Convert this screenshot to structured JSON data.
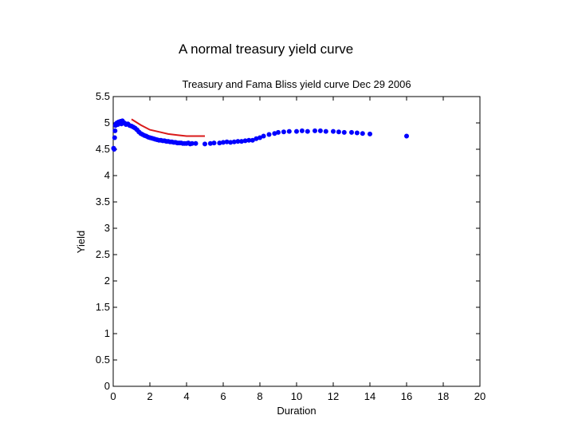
{
  "slide": {
    "title": "A normal treasury yield curve"
  },
  "chart_data": {
    "type": "scatter",
    "title": "Treasury and Fama Bliss  yield curve Dec 29 2006",
    "xlabel": "Duration",
    "ylabel": "Yield",
    "xlim": [
      0,
      20
    ],
    "ylim": [
      0,
      5.5
    ],
    "x_ticks": [
      0,
      2,
      4,
      6,
      8,
      10,
      12,
      14,
      16,
      18,
      20
    ],
    "y_ticks": [
      0,
      0.5,
      1,
      1.5,
      2,
      2.5,
      3,
      3.5,
      4,
      4.5,
      5,
      5.5
    ],
    "grid": false,
    "colors": {
      "scatter": "#0000ff",
      "line": "#d91a1a"
    },
    "series": [
      {
        "kind": "scatter",
        "points": [
          [
            0.02,
            4.52
          ],
          [
            0.05,
            4.5
          ],
          [
            0.08,
            4.72
          ],
          [
            0.1,
            4.85
          ],
          [
            0.12,
            4.95
          ],
          [
            0.15,
            4.98
          ],
          [
            0.2,
            5.0
          ],
          [
            0.25,
            4.97
          ],
          [
            0.3,
            5.02
          ],
          [
            0.35,
            5.0
          ],
          [
            0.4,
            5.03
          ],
          [
            0.45,
            4.98
          ],
          [
            0.5,
            5.04
          ],
          [
            0.55,
            5.01
          ],
          [
            0.6,
            5.0
          ],
          [
            0.65,
            4.99
          ],
          [
            0.7,
            4.97
          ],
          [
            0.8,
            4.98
          ],
          [
            0.9,
            4.95
          ],
          [
            1.0,
            4.94
          ],
          [
            1.1,
            4.92
          ],
          [
            1.2,
            4.9
          ],
          [
            1.3,
            4.87
          ],
          [
            1.4,
            4.83
          ],
          [
            1.5,
            4.8
          ],
          [
            1.6,
            4.78
          ],
          [
            1.7,
            4.76
          ],
          [
            1.8,
            4.75
          ],
          [
            1.9,
            4.73
          ],
          [
            2.0,
            4.72
          ],
          [
            2.1,
            4.71
          ],
          [
            2.2,
            4.7
          ],
          [
            2.3,
            4.69
          ],
          [
            2.4,
            4.68
          ],
          [
            2.5,
            4.67
          ],
          [
            2.6,
            4.67
          ],
          [
            2.7,
            4.66
          ],
          [
            2.8,
            4.66
          ],
          [
            2.9,
            4.65
          ],
          [
            3.0,
            4.65
          ],
          [
            3.1,
            4.64
          ],
          [
            3.2,
            4.64
          ],
          [
            3.3,
            4.63
          ],
          [
            3.4,
            4.63
          ],
          [
            3.5,
            4.62
          ],
          [
            3.6,
            4.62
          ],
          [
            3.7,
            4.62
          ],
          [
            3.8,
            4.61
          ],
          [
            3.9,
            4.61
          ],
          [
            4.0,
            4.61
          ],
          [
            4.1,
            4.62
          ],
          [
            4.2,
            4.6
          ],
          [
            4.3,
            4.61
          ],
          [
            4.5,
            4.61
          ],
          [
            5.0,
            4.6
          ],
          [
            5.3,
            4.61
          ],
          [
            5.5,
            4.62
          ],
          [
            5.8,
            4.62
          ],
          [
            6.0,
            4.63
          ],
          [
            6.2,
            4.64
          ],
          [
            6.4,
            4.63
          ],
          [
            6.6,
            4.64
          ],
          [
            6.8,
            4.65
          ],
          [
            7.0,
            4.65
          ],
          [
            7.2,
            4.66
          ],
          [
            7.4,
            4.67
          ],
          [
            7.6,
            4.67
          ],
          [
            7.8,
            4.7
          ],
          [
            8.0,
            4.72
          ],
          [
            8.2,
            4.75
          ],
          [
            8.5,
            4.78
          ],
          [
            8.8,
            4.8
          ],
          [
            9.0,
            4.82
          ],
          [
            9.3,
            4.83
          ],
          [
            9.6,
            4.84
          ],
          [
            10.0,
            4.84
          ],
          [
            10.3,
            4.85
          ],
          [
            10.6,
            4.84
          ],
          [
            11.0,
            4.85
          ],
          [
            11.3,
            4.85
          ],
          [
            11.6,
            4.84
          ],
          [
            12.0,
            4.84
          ],
          [
            12.3,
            4.83
          ],
          [
            12.6,
            4.82
          ],
          [
            13.0,
            4.82
          ],
          [
            13.3,
            4.81
          ],
          [
            13.6,
            4.8
          ],
          [
            14.0,
            4.79
          ],
          [
            16.0,
            4.75
          ]
        ]
      },
      {
        "kind": "line",
        "points": [
          [
            1.0,
            5.07
          ],
          [
            1.5,
            4.96
          ],
          [
            2.0,
            4.87
          ],
          [
            2.5,
            4.83
          ],
          [
            3.0,
            4.79
          ],
          [
            3.5,
            4.77
          ],
          [
            4.0,
            4.75
          ],
          [
            4.5,
            4.75
          ],
          [
            5.0,
            4.75
          ]
        ]
      }
    ]
  }
}
